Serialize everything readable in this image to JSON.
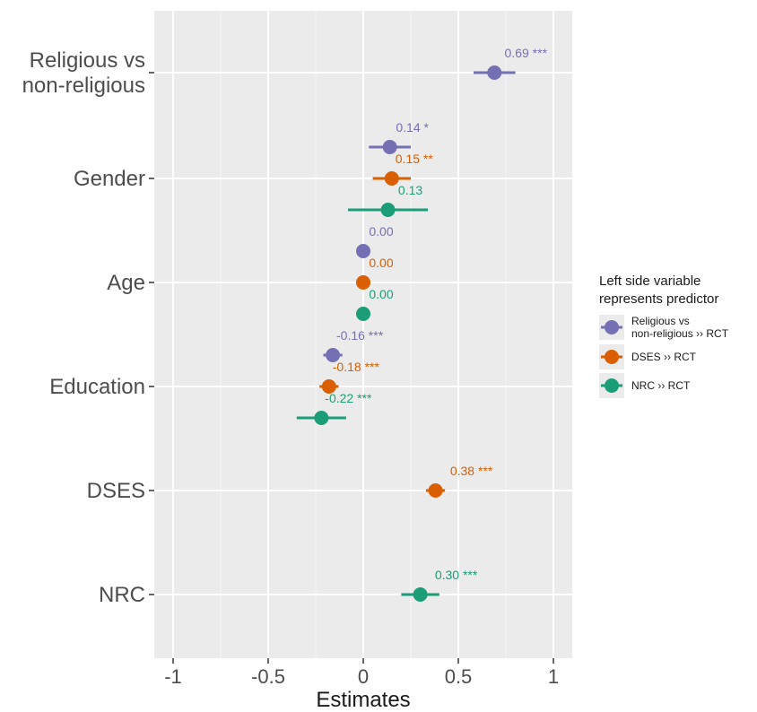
{
  "chart_data": {
    "type": "scatter",
    "xlabel": "Estimates",
    "xlim": [
      -1.1,
      1.1
    ],
    "xticks": [
      -1,
      -0.5,
      0,
      0.5,
      1
    ],
    "xtick_labels": [
      "-1",
      "-0.5",
      "0",
      "0.5",
      "1"
    ],
    "categories": [
      {
        "id": "rel",
        "lines": [
          "Religious vs",
          "non-religious"
        ]
      },
      {
        "id": "gender",
        "lines": [
          "Gender"
        ]
      },
      {
        "id": "age",
        "lines": [
          "Age"
        ]
      },
      {
        "id": "edu",
        "lines": [
          "Education"
        ]
      },
      {
        "id": "dses",
        "lines": [
          "DSES"
        ]
      },
      {
        "id": "nrc",
        "lines": [
          "NRC"
        ]
      }
    ],
    "legend": {
      "title_lines": [
        "Left side variable",
        "represents predictor"
      ],
      "position": "right"
    },
    "series": [
      {
        "name_lines": [
          "Religious vs",
          "non-religious ›› RCT"
        ],
        "color": "#7570b3",
        "points": [
          {
            "category": "rel",
            "estimate": 0.69,
            "ci": [
              0.58,
              0.8
            ],
            "label": "0.69 ***"
          },
          {
            "category": "gender",
            "estimate": 0.14,
            "ci": [
              0.03,
              0.25
            ],
            "label": "0.14 *"
          },
          {
            "category": "age",
            "estimate": 0.0,
            "ci": [
              0.0,
              0.0
            ],
            "label": "0.00"
          },
          {
            "category": "edu",
            "estimate": -0.16,
            "ci": [
              -0.21,
              -0.11
            ],
            "label": "-0.16 ***"
          }
        ]
      },
      {
        "name_lines": [
          "DSES ›› RCT"
        ],
        "color": "#d95f02",
        "points": [
          {
            "category": "gender",
            "estimate": 0.15,
            "ci": [
              0.05,
              0.25
            ],
            "label": "0.15 **"
          },
          {
            "category": "age",
            "estimate": 0.0,
            "ci": [
              0.0,
              0.0
            ],
            "label": "0.00"
          },
          {
            "category": "edu",
            "estimate": -0.18,
            "ci": [
              -0.23,
              -0.13
            ],
            "label": "-0.18 ***"
          },
          {
            "category": "dses",
            "estimate": 0.38,
            "ci": [
              0.33,
              0.43
            ],
            "label": "0.38 ***"
          }
        ]
      },
      {
        "name_lines": [
          "NRC ›› RCT"
        ],
        "color": "#1b9e77",
        "points": [
          {
            "category": "gender",
            "estimate": 0.13,
            "ci": [
              -0.08,
              0.34
            ],
            "label": "0.13"
          },
          {
            "category": "age",
            "estimate": 0.0,
            "ci": [
              0.0,
              0.0
            ],
            "label": "0.00"
          },
          {
            "category": "edu",
            "estimate": -0.22,
            "ci": [
              -0.35,
              -0.09
            ],
            "label": "-0.22 ***"
          },
          {
            "category": "nrc",
            "estimate": 0.3,
            "ci": [
              0.2,
              0.4
            ],
            "label": "0.30 ***"
          }
        ]
      }
    ]
  }
}
